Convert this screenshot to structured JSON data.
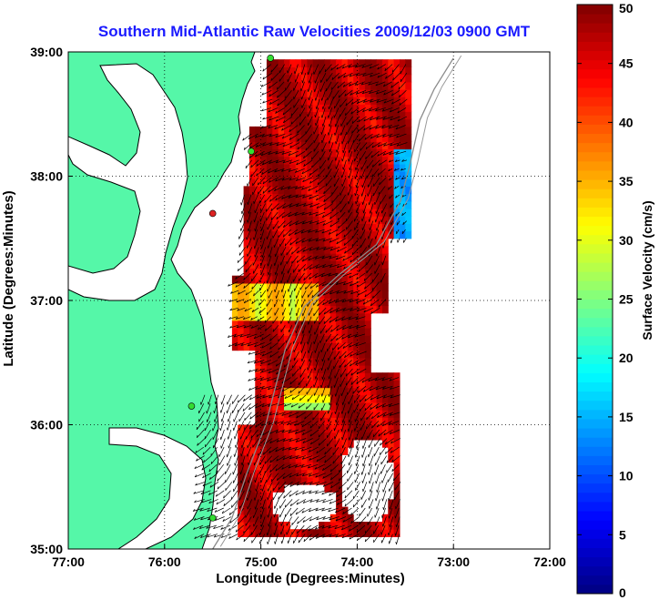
{
  "chart_data": {
    "type": "heatmap",
    "title": "Southern Mid-Atlantic Raw Velocities 2009/12/03 0900 GMT",
    "xlabel": "Longitude (Degrees:Minutes)",
    "ylabel": "Latitude (Degrees:Minutes)",
    "xlim": [
      -77,
      -72
    ],
    "ylim": [
      35,
      39
    ],
    "x_ticks": [
      {
        "value": -77,
        "label": "77:00"
      },
      {
        "value": -76,
        "label": "76:00"
      },
      {
        "value": -75,
        "label": "75:00"
      },
      {
        "value": -74,
        "label": "74:00"
      },
      {
        "value": -73,
        "label": "73:00"
      },
      {
        "value": -72,
        "label": "72:00"
      }
    ],
    "y_ticks": [
      {
        "value": 35,
        "label": "35:00"
      },
      {
        "value": 36,
        "label": "36:00"
      },
      {
        "value": 37,
        "label": "37:00"
      },
      {
        "value": 38,
        "label": "38:00"
      },
      {
        "value": 39,
        "label": "39:00"
      }
    ],
    "grid": true,
    "colorbar": {
      "label": "Surface Velocity (cm/s)",
      "range": [
        0,
        50
      ],
      "ticks": [
        0,
        5,
        10,
        15,
        20,
        25,
        30,
        35,
        40,
        45,
        50
      ],
      "position": "right"
    },
    "velocity_field": {
      "extent_lon": [
        -75.65,
        -73.25
      ],
      "extent_lat": [
        35.1,
        38.95
      ],
      "dominant_direction": "southwest",
      "max_speed": 50,
      "low_speed_region": {
        "lon": [
          -73.65,
          -73.3
        ],
        "lat": [
          37.5,
          38.2
        ],
        "speed": 12
      }
    },
    "land_color": "#55f7a8",
    "coastline_color": "#000000",
    "radar_sites": [
      {
        "lon": -74.9,
        "lat": 38.95,
        "color": "#33dd33"
      },
      {
        "lon": -75.1,
        "lat": 38.2,
        "color": "#33dd33"
      },
      {
        "lon": -75.5,
        "lat": 37.7,
        "color": "#dd2222"
      },
      {
        "lon": -75.72,
        "lat": 36.15,
        "color": "#33dd33"
      },
      {
        "lon": -75.5,
        "lat": 35.25,
        "color": "#33dd33"
      }
    ]
  }
}
